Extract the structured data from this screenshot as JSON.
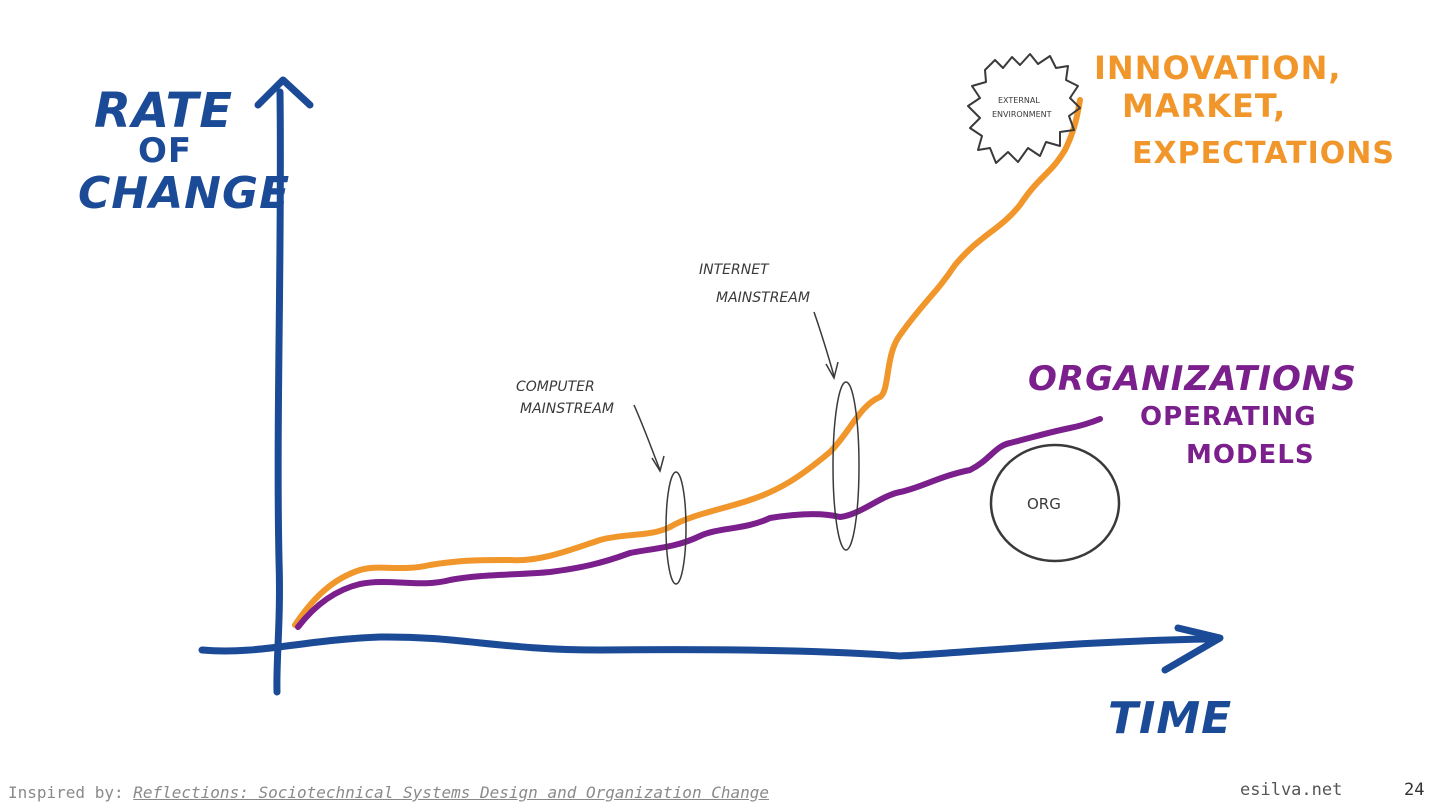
{
  "labels": {
    "y_axis": [
      "RATE",
      "OF",
      "CHANGE"
    ],
    "x_axis": "TIME",
    "innovation": [
      "INNOVATION,",
      "MARKET,",
      "EXPECTATIONS"
    ],
    "organizations": "ORGANIZATIONS",
    "operating_models": [
      "OPERATING",
      "MODELS"
    ],
    "external": [
      "EXTERNAL",
      "ENVIRONMENT"
    ],
    "org": "ORG",
    "computer": [
      "COMPUTER",
      "MAINSTREAM"
    ],
    "internet": [
      "INTERNET",
      "MAINSTREAM"
    ]
  },
  "footer": {
    "prefix": "Inspired by:",
    "link_text": "Reflections: Sociotechnical Systems Design and Organization Change",
    "site": "esilva.net",
    "page": "24"
  },
  "colors": {
    "axis": "#1b4a96",
    "innovation": "#f0962a",
    "organizations": "#7a1f8c",
    "sketch": "#3a3a3a"
  }
}
